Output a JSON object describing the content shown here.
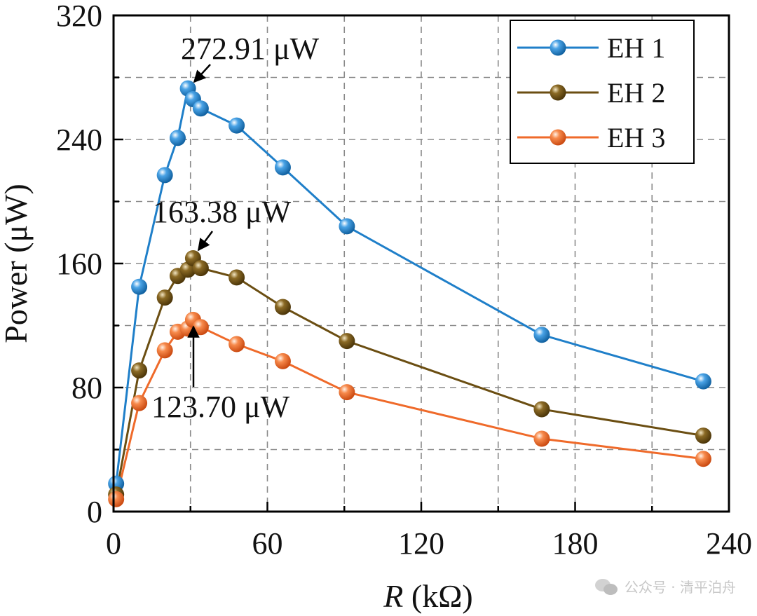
{
  "chart_data": {
    "type": "line",
    "xlabel": {
      "italic": "R",
      "rest": " (kΩ)"
    },
    "ylabel": "Power (μW)",
    "xlim": [
      0,
      240
    ],
    "ylim": [
      0,
      320
    ],
    "xticks": [
      0,
      60,
      120,
      180,
      240
    ],
    "yticks": [
      0,
      80,
      160,
      240,
      320
    ],
    "grid": true,
    "legend_position": "top-right",
    "series": [
      {
        "name": "EH 1",
        "color": "#1f7fc9",
        "x": [
          1,
          10,
          20,
          25,
          29,
          31,
          34,
          48,
          66,
          91,
          167,
          230
        ],
        "y": [
          18,
          145,
          217,
          241,
          272.91,
          266,
          260,
          249,
          222,
          184,
          114,
          84
        ]
      },
      {
        "name": "EH 2",
        "color": "#6b4e12",
        "x": [
          1,
          10,
          20,
          25,
          29,
          31,
          34,
          48,
          66,
          91,
          167,
          230
        ],
        "y": [
          11,
          91,
          138,
          152,
          156,
          163.38,
          157,
          151,
          132,
          110,
          66,
          49
        ]
      },
      {
        "name": "EH 3",
        "color": "#ef6a2a",
        "x": [
          1,
          10,
          20,
          25,
          29,
          31,
          34,
          48,
          66,
          91,
          167,
          230
        ],
        "y": [
          8,
          70,
          104,
          116,
          118,
          123.7,
          119,
          108,
          97,
          77,
          47,
          34
        ]
      }
    ],
    "annotations": [
      {
        "text": "272.91 μW"
      },
      {
        "text": "163.38 μW"
      },
      {
        "text": "123.70 μW"
      }
    ]
  },
  "watermark": {
    "icon": "wechat-icon",
    "text": "公众号 · 清平泊舟"
  }
}
